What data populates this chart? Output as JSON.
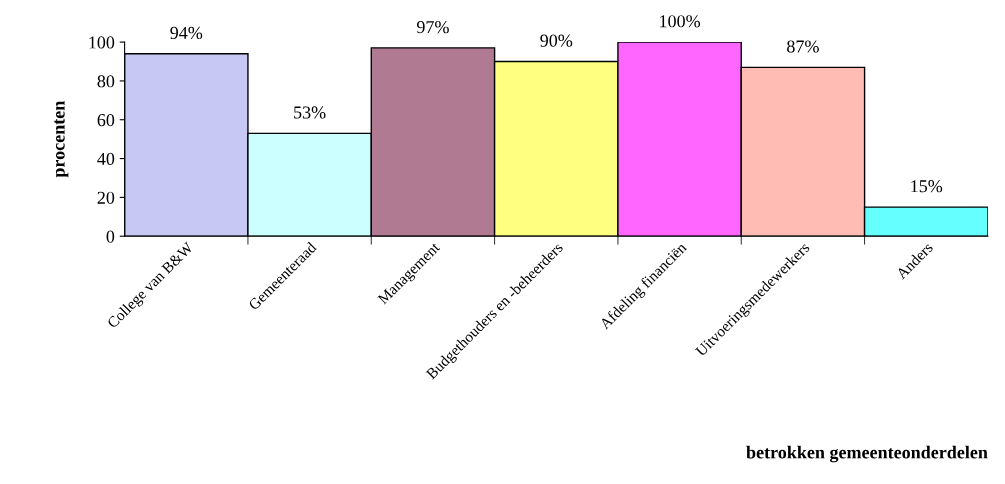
{
  "chart_data": {
    "type": "bar",
    "xlabel": "betrokken gemeenteonderdelen",
    "ylabel": "procenten",
    "categories": [
      "College van B&W",
      "Gemeenteraad",
      "Management",
      "Budgethouders en -beheerders",
      "Afdeling financiën",
      "Uitvoeringsmedewerkers",
      "Anders"
    ],
    "values": [
      94,
      53,
      97,
      90,
      100,
      87,
      15
    ],
    "value_labels": [
      "94%",
      "53%",
      "97%",
      "90%",
      "100%",
      "87%",
      "15%"
    ],
    "colors": [
      "#c8c8f4",
      "#ccffff",
      "#b07a92",
      "#ffff80",
      "#ff66ff",
      "#ffbcb4",
      "#66ffff"
    ],
    "ylim": [
      0,
      100
    ],
    "yticks": [
      0,
      20,
      40,
      60,
      80,
      100
    ],
    "grid": false,
    "legend": false
  }
}
